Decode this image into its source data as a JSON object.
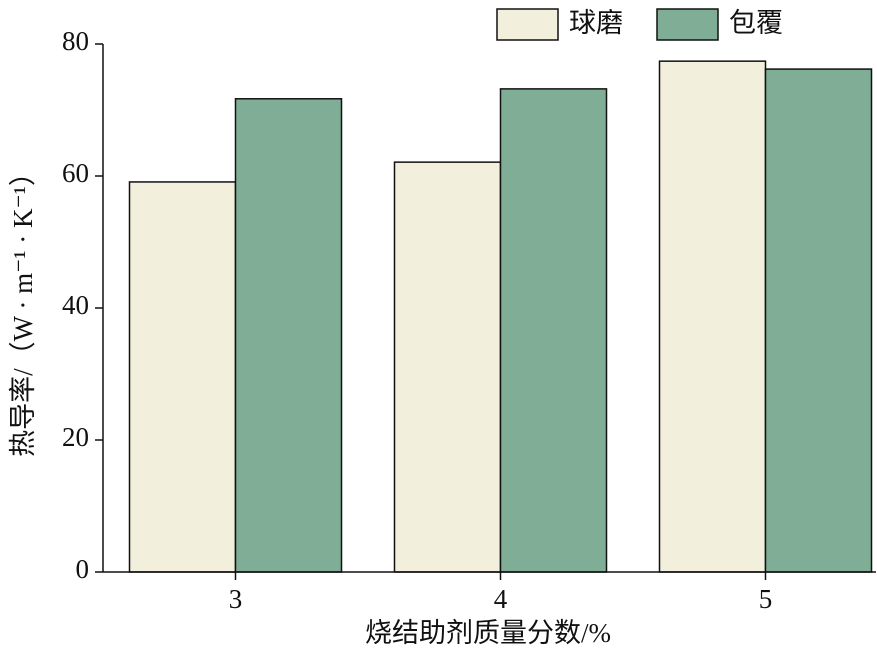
{
  "chart_data": {
    "type": "bar",
    "categories": [
      "3",
      "4",
      "5"
    ],
    "series": [
      {
        "name": "球磨",
        "color": "#f2efdc",
        "values": [
          59.1,
          62.1,
          77.4
        ]
      },
      {
        "name": "包覆",
        "color": "#80ad96",
        "values": [
          71.7,
          73.2,
          76.2
        ]
      }
    ],
    "xlabel": "烧结助剂质量分数/%",
    "ylabel": "热导率/（W · m⁻¹ · K⁻¹）",
    "ylim": [
      0,
      80
    ],
    "yticks": [
      0,
      20,
      40,
      60,
      80
    ],
    "grid": false,
    "legend": "top-right"
  }
}
